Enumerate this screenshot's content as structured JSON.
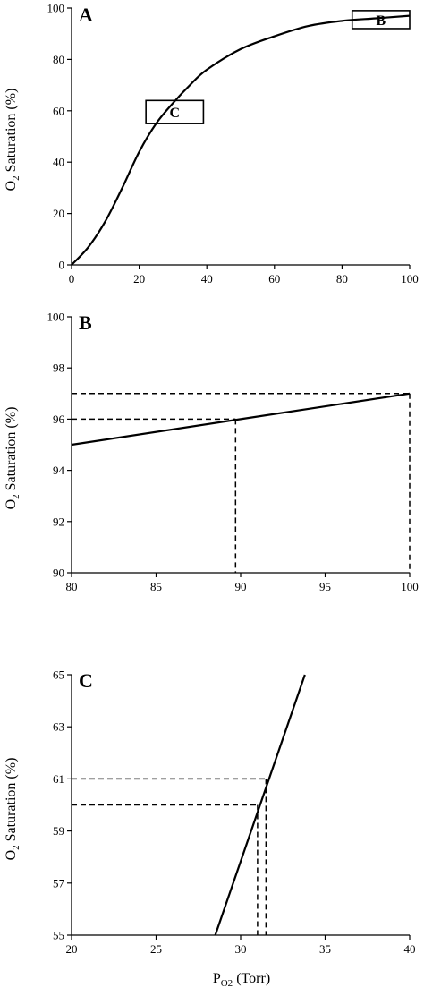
{
  "figure": {
    "ylabel_main": "O",
    "ylabel_sub": "2",
    "ylabel_rest": " Saturation (%)",
    "xlabel_main": "P",
    "xlabel_sub": "O2",
    "xlabel_rest": " (Torr)"
  },
  "chart_data": [
    {
      "type": "line",
      "panel": "A",
      "xlim": [
        0,
        100
      ],
      "ylim": [
        0,
        100
      ],
      "xticks": [
        0,
        20,
        40,
        60,
        80,
        100
      ],
      "yticks": [
        0,
        20,
        40,
        60,
        80,
        100
      ],
      "grid": false,
      "series": [
        {
          "x": [
            0,
            5,
            10,
            15,
            20,
            25,
            30,
            35,
            40,
            50,
            60,
            70,
            80,
            90,
            100
          ],
          "y": [
            0,
            7,
            17,
            30,
            44,
            55,
            63,
            70,
            76,
            84,
            89,
            93,
            95,
            96,
            97
          ]
        }
      ],
      "annotations": [
        {
          "label": "B",
          "x0": 83,
          "x1": 100,
          "y0": 92,
          "y1": 99
        },
        {
          "label": "C",
          "x0": 22,
          "x1": 39,
          "y0": 55,
          "y1": 64
        }
      ]
    },
    {
      "type": "line",
      "panel": "B",
      "xlim": [
        80,
        100
      ],
      "ylim": [
        90,
        100
      ],
      "xticks": [
        80,
        85,
        90,
        95,
        100
      ],
      "yticks": [
        90,
        92,
        94,
        96,
        98,
        100
      ],
      "grid": false,
      "series": [
        {
          "x": [
            80,
            90,
            100
          ],
          "y": [
            95,
            96,
            97
          ]
        }
      ],
      "reference_lines": [
        {
          "x": 89.7,
          "y": 96
        },
        {
          "x": 100,
          "y": 97
        }
      ]
    },
    {
      "type": "line",
      "panel": "C",
      "xlim": [
        20,
        40
      ],
      "ylim": [
        55,
        65
      ],
      "xticks": [
        20,
        25,
        30,
        35,
        40
      ],
      "yticks": [
        55,
        57,
        59,
        61,
        63,
        65
      ],
      "grid": false,
      "series": [
        {
          "x": [
            28.5,
            33.8
          ],
          "y": [
            55,
            65
          ]
        }
      ],
      "reference_lines": [
        {
          "x": 31,
          "y": 60
        },
        {
          "x": 31.5,
          "y": 61
        }
      ]
    }
  ]
}
